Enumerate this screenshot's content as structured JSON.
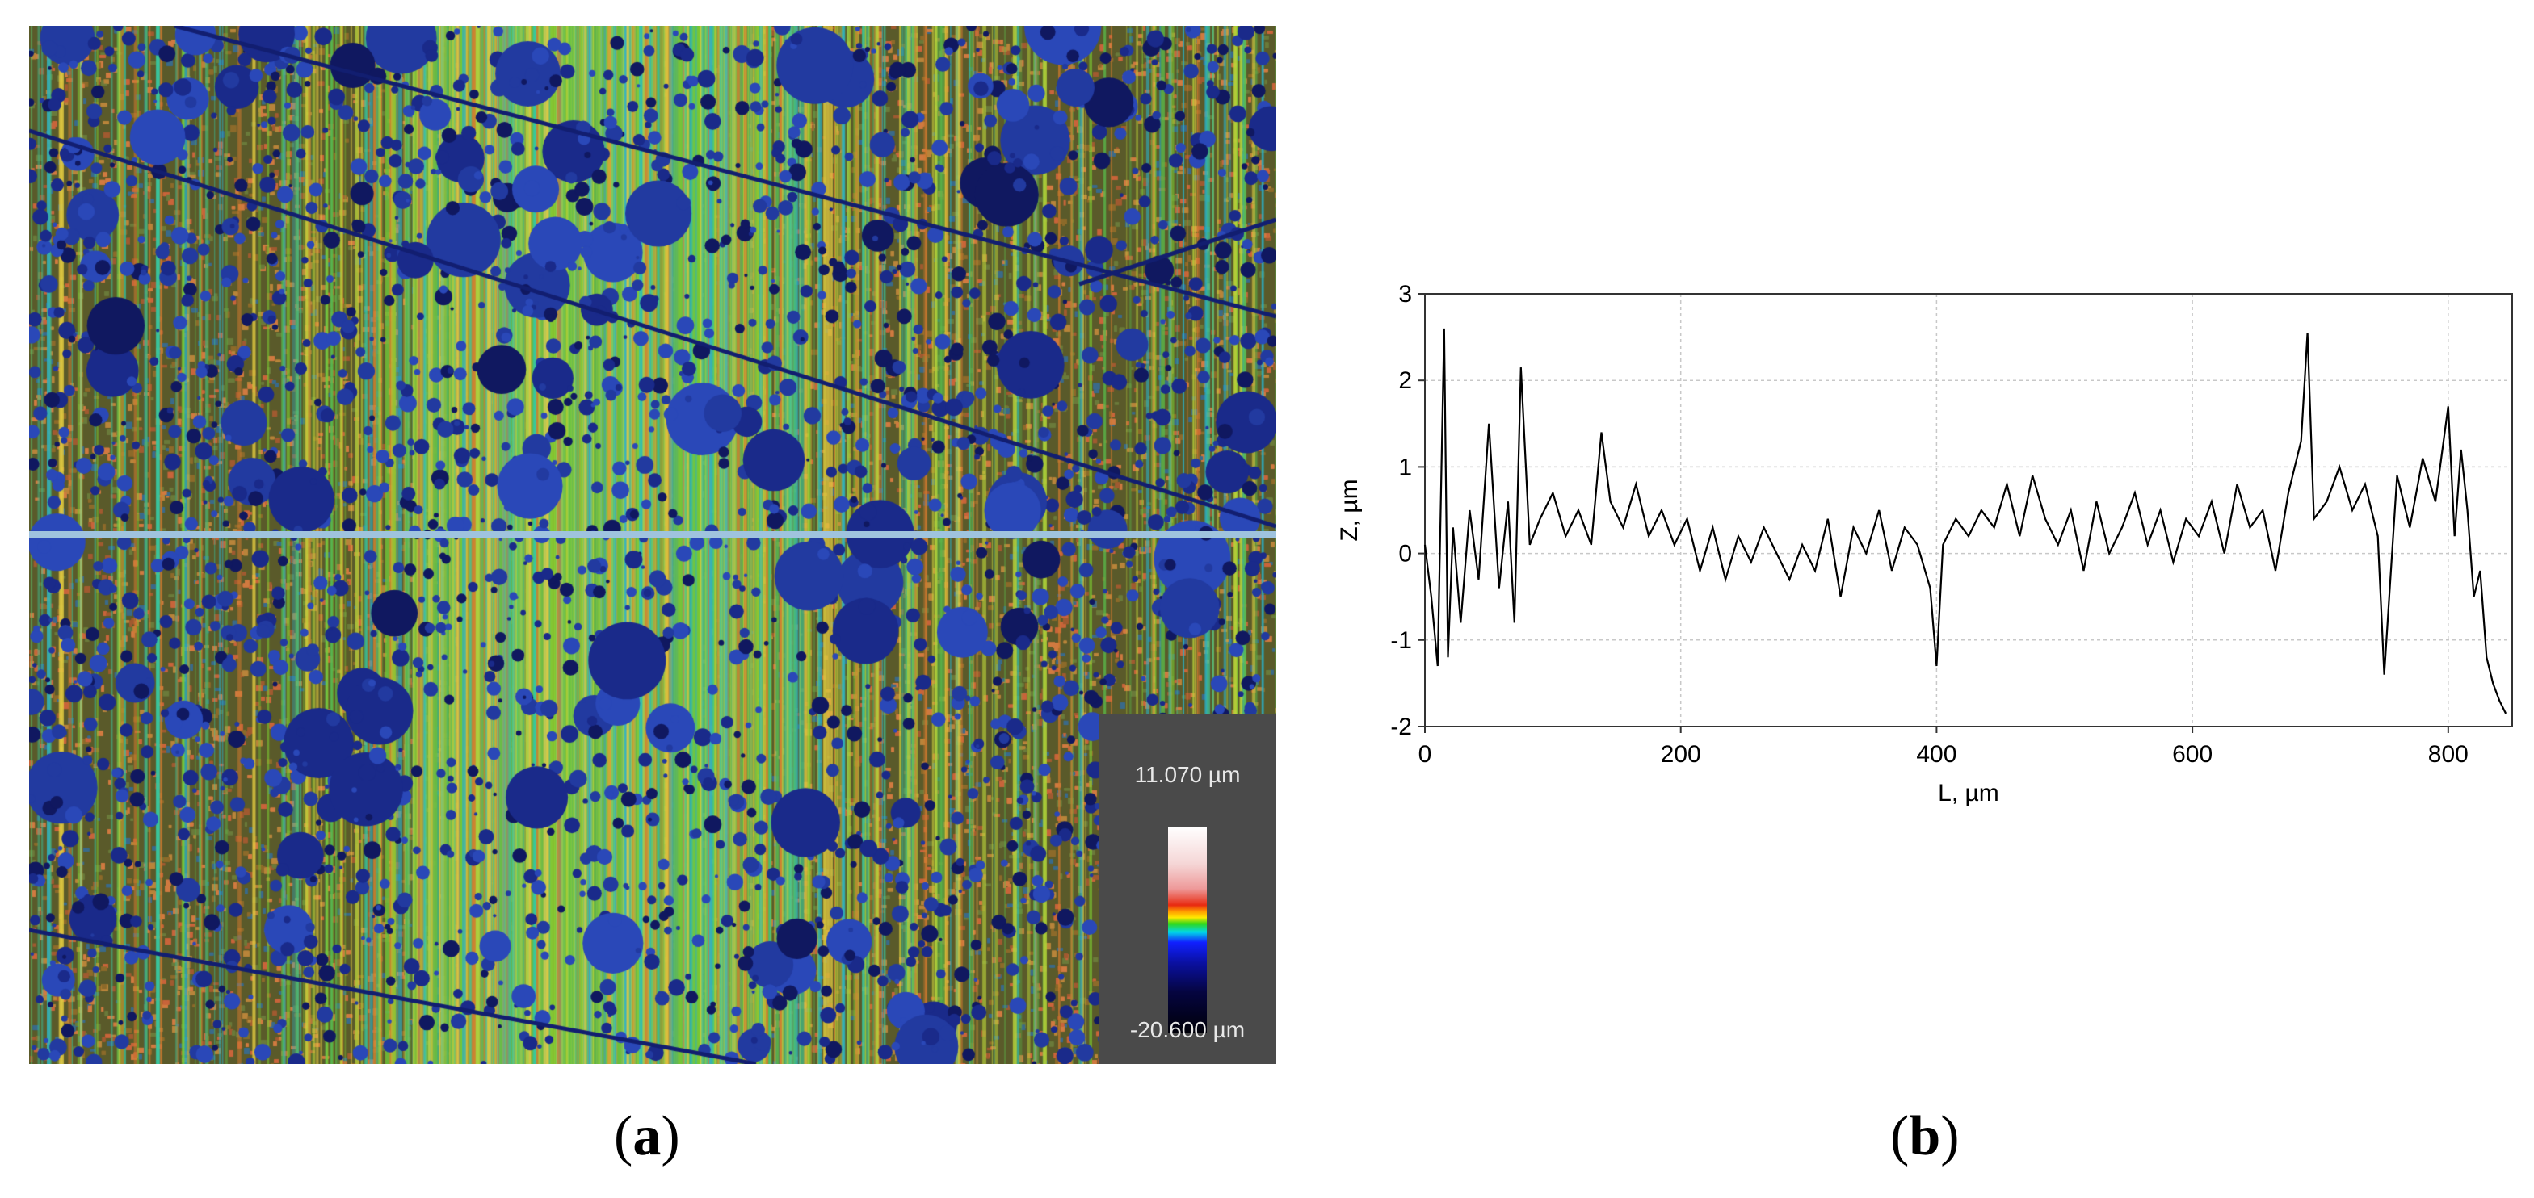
{
  "panels": {
    "a": {
      "label_open": "(",
      "label_letter": "a",
      "label_close": ")",
      "colorbar": {
        "max_label": "11.070 µm",
        "min_label": "-20.600 µm",
        "colors": [
          "#ffffff",
          "#f5d6d6",
          "#e82a10",
          "#ff9a00",
          "#ffe800",
          "#2fd81a",
          "#00d8e8",
          "#1020ff",
          "#050540",
          "#000008"
        ]
      },
      "profile_line_color": "#9fc3de"
    },
    "b": {
      "label_open": "(",
      "label_letter": "b",
      "label_close": ")"
    }
  },
  "chart_data": {
    "type": "line",
    "title": "",
    "xlabel": "L, µm",
    "ylabel": "Z, µm",
    "xlim": [
      0,
      850
    ],
    "ylim": [
      -2,
      3
    ],
    "xticks": [
      0,
      200,
      400,
      600,
      800
    ],
    "yticks": [
      -2,
      -1,
      0,
      1,
      2,
      3
    ],
    "grid": true,
    "line_color": "#000000",
    "series": [
      {
        "x": [
          0,
          5,
          10,
          15,
          18,
          22,
          28,
          35,
          42,
          50,
          58,
          65,
          70,
          75,
          82,
          90,
          100,
          110,
          120,
          130,
          138,
          145,
          155,
          165,
          175,
          185,
          195,
          205,
          215,
          225,
          235,
          245,
          255,
          265,
          275,
          285,
          295,
          305,
          315,
          325,
          335,
          345,
          355,
          365,
          375,
          385,
          395,
          400,
          405,
          415,
          425,
          435,
          445,
          455,
          465,
          475,
          485,
          495,
          505,
          515,
          525,
          535,
          545,
          555,
          565,
          575,
          585,
          595,
          605,
          615,
          625,
          635,
          645,
          655,
          665,
          675,
          685,
          690,
          695,
          705,
          715,
          725,
          735,
          745,
          750,
          760,
          770,
          780,
          790,
          800,
          805,
          810,
          815,
          820,
          825,
          830,
          835,
          840,
          845
        ],
        "y": [
          0.1,
          -0.5,
          -1.3,
          2.6,
          -1.2,
          0.3,
          -0.8,
          0.5,
          -0.3,
          1.5,
          -0.4,
          0.6,
          -0.8,
          2.15,
          0.1,
          0.4,
          0.7,
          0.2,
          0.5,
          0.1,
          1.4,
          0.6,
          0.3,
          0.8,
          0.2,
          0.5,
          0.1,
          0.4,
          -0.2,
          0.3,
          -0.3,
          0.2,
          -0.1,
          0.3,
          0.0,
          -0.3,
          0.1,
          -0.2,
          0.4,
          -0.5,
          0.3,
          0.0,
          0.5,
          -0.2,
          0.3,
          0.1,
          -0.4,
          -1.3,
          0.1,
          0.4,
          0.2,
          0.5,
          0.3,
          0.8,
          0.2,
          0.9,
          0.4,
          0.1,
          0.5,
          -0.2,
          0.6,
          0.0,
          0.3,
          0.7,
          0.1,
          0.5,
          -0.1,
          0.4,
          0.2,
          0.6,
          0.0,
          0.8,
          0.3,
          0.5,
          -0.2,
          0.7,
          1.3,
          2.55,
          0.4,
          0.6,
          1.0,
          0.5,
          0.8,
          0.2,
          -1.4,
          0.9,
          0.3,
          1.1,
          0.6,
          1.7,
          0.2,
          1.2,
          0.5,
          -0.5,
          -0.2,
          -1.2,
          -1.5,
          -1.7,
          -1.85
        ]
      }
    ]
  }
}
